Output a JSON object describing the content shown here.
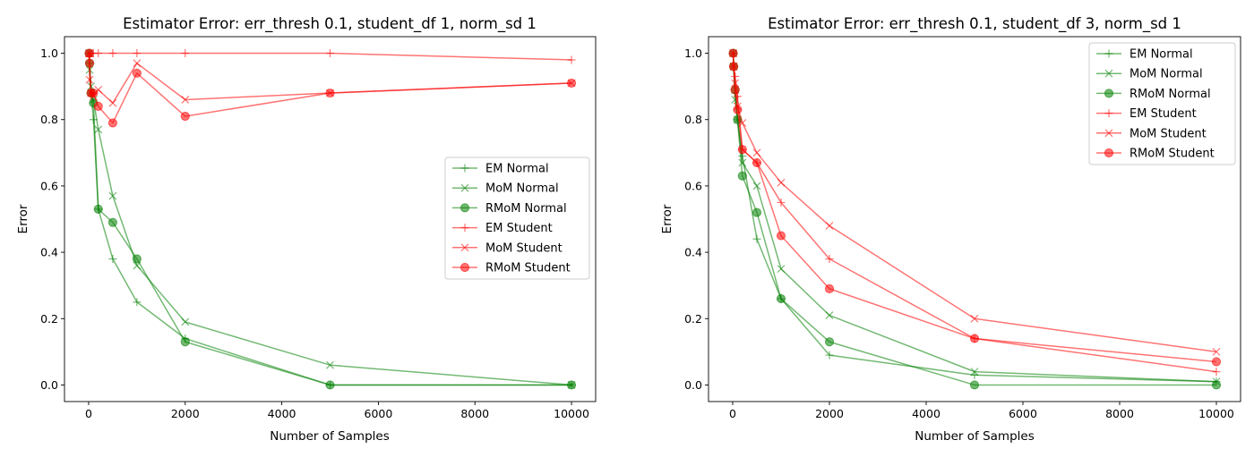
{
  "chart_data": [
    {
      "type": "line",
      "title": "Estimator Error: err_thresh 0.1, student_df 1, norm_sd 1",
      "xlabel": "Number of Samples",
      "ylabel": "Error",
      "xlim": [
        -500,
        10500
      ],
      "ylim": [
        -0.05,
        1.05
      ],
      "xticks": [
        0,
        2000,
        4000,
        6000,
        8000,
        10000
      ],
      "xtick_labels": [
        "0",
        "2000",
        "4000",
        "6000",
        "8000",
        "10000"
      ],
      "yticks": [
        0.0,
        0.2,
        0.4,
        0.6,
        0.8,
        1.0
      ],
      "ytick_labels": [
        "0.0",
        "0.2",
        "0.4",
        "0.6",
        "0.8",
        "1.0"
      ],
      "grid": false,
      "legend": "center-right",
      "x": [
        10,
        20,
        50,
        100,
        200,
        500,
        1000,
        2000,
        5000,
        10000
      ],
      "series": [
        {
          "name": "EM Normal",
          "color": "#008000",
          "marker": "plus",
          "values": [
            1.0,
            0.97,
            0.88,
            0.8,
            0.53,
            0.38,
            0.25,
            0.14,
            0.0,
            0.0
          ]
        },
        {
          "name": "MoM Normal",
          "color": "#008000",
          "marker": "x",
          "values": [
            1.0,
            0.95,
            0.9,
            0.86,
            0.77,
            0.57,
            0.36,
            0.19,
            0.06,
            0.0
          ]
        },
        {
          "name": "RMoM Normal",
          "color": "#008000",
          "marker": "circle",
          "values": [
            1.0,
            0.97,
            0.88,
            0.85,
            0.53,
            0.49,
            0.38,
            0.13,
            0.0,
            0.0
          ]
        },
        {
          "name": "EM Student",
          "color": "#ff0000",
          "marker": "plus",
          "values": [
            1.0,
            0.99,
            1.0,
            1.0,
            1.0,
            1.0,
            1.0,
            1.0,
            1.0,
            0.98
          ]
        },
        {
          "name": "MoM Student",
          "color": "#ff0000",
          "marker": "x",
          "values": [
            1.0,
            0.92,
            0.88,
            0.87,
            0.89,
            0.85,
            0.97,
            0.86,
            0.88,
            0.91
          ]
        },
        {
          "name": "RMoM Student",
          "color": "#ff0000",
          "marker": "circle",
          "values": [
            1.0,
            0.97,
            0.88,
            0.88,
            0.84,
            0.79,
            0.94,
            0.81,
            0.88,
            0.91
          ]
        }
      ]
    },
    {
      "type": "line",
      "title": "Estimator Error: err_thresh 0.1, student_df 3, norm_sd 1",
      "xlabel": "Number of Samples",
      "ylabel": "Error",
      "xlim": [
        -500,
        10500
      ],
      "ylim": [
        -0.05,
        1.05
      ],
      "xticks": [
        0,
        2000,
        4000,
        6000,
        8000,
        10000
      ],
      "xtick_labels": [
        "0",
        "2000",
        "4000",
        "6000",
        "8000",
        "10000"
      ],
      "yticks": [
        0.0,
        0.2,
        0.4,
        0.6,
        0.8,
        1.0
      ],
      "ytick_labels": [
        "0.0",
        "0.2",
        "0.4",
        "0.6",
        "0.8",
        "1.0"
      ],
      "grid": false,
      "legend": "top-right",
      "x": [
        10,
        20,
        50,
        100,
        200,
        500,
        1000,
        2000,
        5000,
        10000
      ],
      "series": [
        {
          "name": "EM Normal",
          "color": "#008000",
          "marker": "plus",
          "values": [
            1.0,
            0.96,
            0.88,
            0.8,
            0.69,
            0.44,
            0.26,
            0.09,
            0.03,
            0.01
          ]
        },
        {
          "name": "MoM Normal",
          "color": "#008000",
          "marker": "x",
          "values": [
            1.0,
            0.96,
            0.86,
            0.8,
            0.67,
            0.6,
            0.35,
            0.21,
            0.04,
            0.01
          ]
        },
        {
          "name": "RMoM Normal",
          "color": "#008000",
          "marker": "circle",
          "values": [
            1.0,
            0.96,
            0.89,
            0.8,
            0.63,
            0.52,
            0.26,
            0.13,
            0.0,
            0.0
          ]
        },
        {
          "name": "EM Student",
          "color": "#ff0000",
          "marker": "plus",
          "values": [
            1.0,
            0.96,
            0.93,
            0.87,
            0.71,
            0.67,
            0.55,
            0.38,
            0.14,
            0.04
          ]
        },
        {
          "name": "MoM Student",
          "color": "#ff0000",
          "marker": "x",
          "values": [
            1.0,
            0.96,
            0.91,
            0.84,
            0.79,
            0.7,
            0.61,
            0.48,
            0.2,
            0.1
          ]
        },
        {
          "name": "RMoM Student",
          "color": "#ff0000",
          "marker": "circle",
          "values": [
            1.0,
            0.96,
            0.89,
            0.83,
            0.71,
            0.67,
            0.45,
            0.29,
            0.14,
            0.07
          ]
        }
      ]
    }
  ]
}
